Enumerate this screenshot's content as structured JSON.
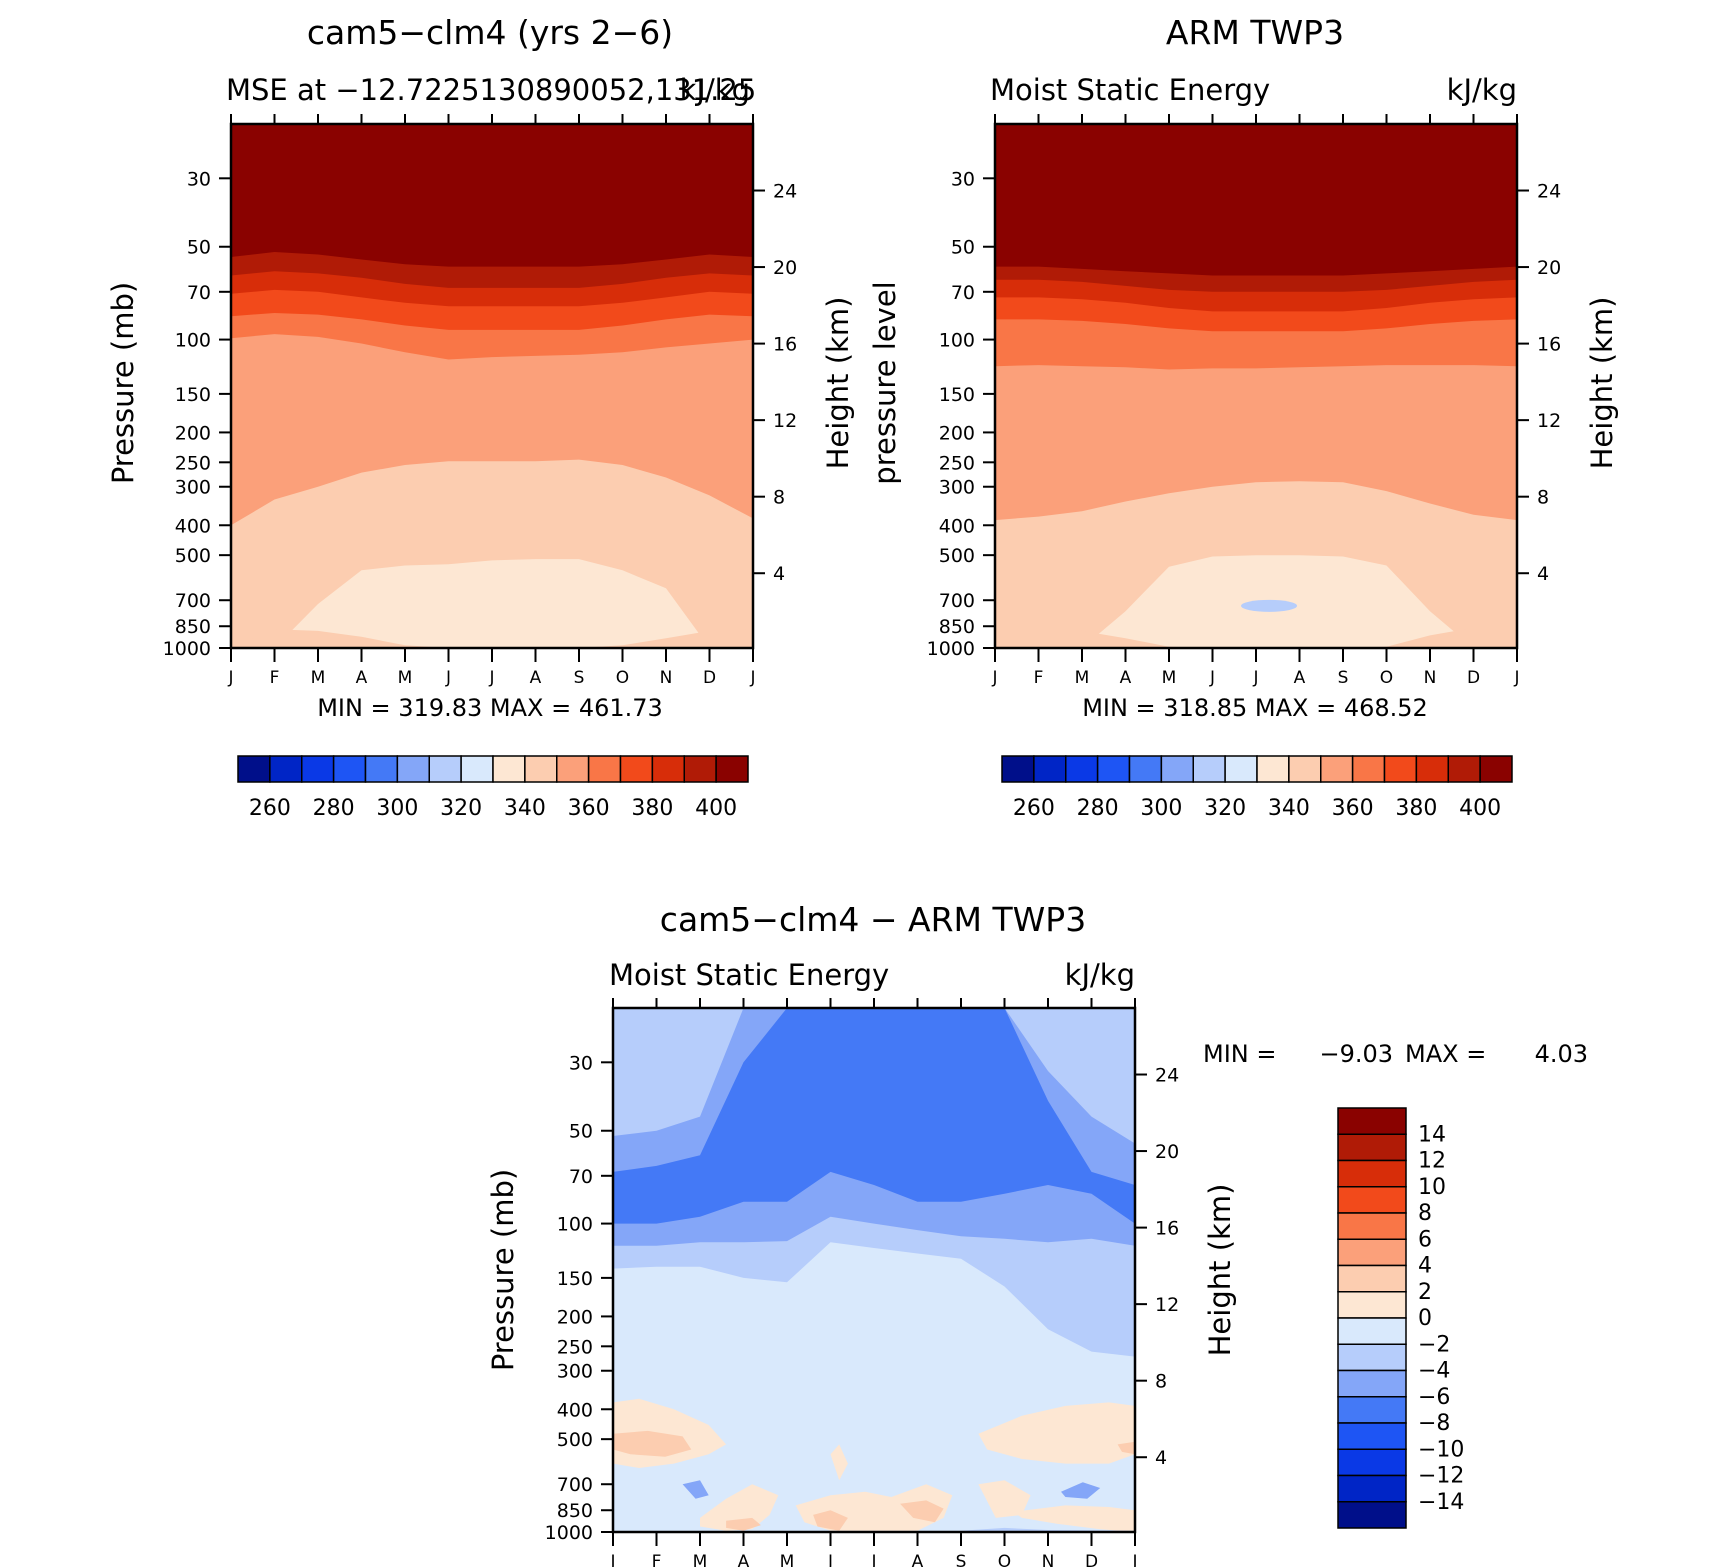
{
  "chart_data": [
    {
      "type": "heatmap",
      "title": "cam5−clm4 (yrs 2−6)",
      "subtitle_left": "MSE at −12.7225130890052,131.25",
      "subtitle_right": "kJ/kg",
      "ylabel_left": "Pressure (mb)",
      "ylabel_right": "Height (km)",
      "x_categories": [
        "J",
        "F",
        "M",
        "A",
        "M",
        "J",
        "J",
        "A",
        "S",
        "O",
        "N",
        "D",
        "J"
      ],
      "y_pressure_ticks": [
        30,
        50,
        70,
        100,
        150,
        200,
        250,
        300,
        400,
        500,
        700,
        850,
        1000
      ],
      "y_height_ticks": [
        24,
        20,
        16,
        12,
        8,
        4
      ],
      "ylim_pressure": [
        1000,
        20
      ],
      "levels": [
        250,
        260,
        270,
        280,
        290,
        300,
        310,
        320,
        330,
        340,
        350,
        360,
        370,
        380,
        390,
        400
      ],
      "stats": "MIN = 319.83 MAX = 461.73",
      "colorbar_labels": [
        "260",
        "280",
        "300",
        "320",
        "340",
        "360",
        "380",
        "400"
      ],
      "bands_pressure": [
        {
          "level_idx": 15,
          "top": [
            20,
            20,
            20,
            20,
            20,
            20,
            20,
            20,
            20,
            20,
            20,
            20,
            20
          ]
        },
        {
          "level_idx": 14,
          "top": [
            54,
            52,
            53,
            55,
            57,
            58,
            58,
            58,
            58,
            57,
            55,
            53,
            54
          ]
        },
        {
          "level_idx": 13,
          "top": [
            62,
            60,
            61,
            63,
            66,
            68,
            68,
            68,
            68,
            66,
            63,
            61,
            62
          ]
        },
        {
          "level_idx": 12,
          "top": [
            71,
            69,
            70,
            73,
            76,
            78,
            78,
            78,
            78,
            76,
            73,
            70,
            71
          ]
        },
        {
          "level_idx": 11,
          "top": [
            84,
            82,
            83,
            86,
            90,
            93,
            93,
            93,
            93,
            90,
            86,
            83,
            84
          ]
        },
        {
          "level_idx": 10,
          "top": [
            99,
            96,
            98,
            103,
            110,
            116,
            114,
            113,
            112,
            110,
            106,
            103,
            100
          ]
        },
        {
          "level_idx": 9,
          "top": [
            400,
            330,
            300,
            270,
            255,
            248,
            248,
            248,
            245,
            255,
            280,
            320,
            380
          ]
        },
        {
          "level_idx": 8,
          "top": [
            1000,
            1000,
            720,
            560,
            540,
            535,
            520,
            515,
            515,
            560,
            640,
            1000,
            1000
          ]
        },
        {
          "level_idx": 9,
          "top": [
            1000,
            870,
            880,
            920,
            980,
            1000,
            1000,
            1000,
            1000,
            980,
            930,
            880,
            870
          ]
        }
      ],
      "min_value": 319.83,
      "max_value": 461.73
    },
    {
      "type": "heatmap",
      "title": "ARM TWP3",
      "subtitle_left": "Moist Static Energy",
      "subtitle_right": "kJ/kg",
      "ylabel_left": "pressure level",
      "ylabel_right": "Height (km)",
      "x_categories": [
        "J",
        "F",
        "M",
        "A",
        "M",
        "J",
        "J",
        "A",
        "S",
        "O",
        "N",
        "D",
        "J"
      ],
      "y_pressure_ticks": [
        30,
        50,
        70,
        100,
        150,
        200,
        250,
        300,
        400,
        500,
        700,
        850,
        1000
      ],
      "y_height_ticks": [
        24,
        20,
        16,
        12,
        8,
        4
      ],
      "ylim_pressure": [
        1000,
        20
      ],
      "levels": [
        250,
        260,
        270,
        280,
        290,
        300,
        310,
        320,
        330,
        340,
        350,
        360,
        370,
        380,
        390,
        400
      ],
      "stats": "MIN = 318.85 MAX = 468.52",
      "colorbar_labels": [
        "260",
        "280",
        "300",
        "320",
        "340",
        "360",
        "380",
        "400"
      ],
      "bands_pressure": [
        {
          "level_idx": 15,
          "top": [
            20,
            20,
            20,
            20,
            20,
            20,
            20,
            20,
            20,
            20,
            20,
            20,
            20
          ]
        },
        {
          "level_idx": 14,
          "top": [
            58,
            58,
            59,
            60,
            61,
            62,
            62,
            62,
            62,
            61,
            60,
            59,
            58
          ]
        },
        {
          "level_idx": 13,
          "top": [
            64,
            64,
            65,
            67,
            69,
            70,
            70,
            70,
            70,
            69,
            67,
            65,
            64
          ]
        },
        {
          "level_idx": 12,
          "top": [
            73,
            73,
            74,
            76,
            79,
            81,
            81,
            81,
            81,
            79,
            76,
            74,
            73
          ]
        },
        {
          "level_idx": 11,
          "top": [
            86,
            86,
            87,
            89,
            92,
            94,
            94,
            94,
            94,
            92,
            89,
            87,
            86
          ]
        },
        {
          "level_idx": 10,
          "top": [
            122,
            121,
            122,
            123,
            125,
            124,
            124,
            123,
            122,
            121,
            121,
            121,
            122
          ]
        },
        {
          "level_idx": 9,
          "top": [
            385,
            375,
            360,
            335,
            315,
            300,
            290,
            288,
            290,
            310,
            340,
            370,
            385
          ]
        },
        {
          "level_idx": 8,
          "top": [
            1000,
            1000,
            1000,
            760,
            545,
            505,
            500,
            500,
            505,
            540,
            760,
            1000,
            1000
          ]
        },
        {
          "level_idx": 9,
          "top": [
            860,
            850,
            880,
            930,
            990,
            1000,
            1000,
            1000,
            1000,
            990,
            910,
            860,
            860
          ]
        }
      ],
      "inner_minimum": {
        "level_idx": 6,
        "x": 6.3,
        "p": 730
      },
      "min_value": 318.85,
      "max_value": 468.52
    },
    {
      "type": "heatmap",
      "title": "cam5−clm4 − ARM TWP3",
      "subtitle_left": "Moist Static Energy",
      "subtitle_right": "kJ/kg",
      "ylabel_left": "Pressure (mb)",
      "ylabel_right": "Height (km)",
      "x_categories": [
        "J",
        "F",
        "M",
        "A",
        "M",
        "J",
        "J",
        "A",
        "S",
        "O",
        "N",
        "D",
        "J"
      ],
      "y_pressure_ticks": [
        30,
        50,
        70,
        100,
        150,
        200,
        250,
        300,
        400,
        500,
        700,
        850,
        1000
      ],
      "y_height_ticks": [
        24,
        20,
        16,
        12,
        8,
        4
      ],
      "ylim_pressure": [
        1000,
        20
      ],
      "levels": [
        -16,
        -14,
        -12,
        -10,
        -8,
        -6,
        -4,
        -2,
        0,
        2,
        4,
        6,
        8,
        10,
        12,
        14,
        16
      ],
      "stats_min_label": "MIN =",
      "stats_min": "−9.03",
      "stats_max_label": "MAX =",
      "stats_max": "4.03",
      "colorbar_labels": [
        "14",
        "12",
        "10",
        "8",
        "6",
        "4",
        "2",
        "0",
        "−2",
        "−4",
        "−6",
        "−8",
        "−10",
        "−12",
        "−14"
      ],
      "bands_pressure": [
        {
          "level_idx": 7,
          "top": [
            20,
            20,
            20,
            20,
            20,
            20,
            20,
            20,
            20,
            20,
            20,
            20,
            20
          ]
        },
        {
          "level_idx": 6,
          "top": [
            20,
            20,
            20,
            20,
            20,
            20,
            20,
            20,
            20,
            20,
            20,
            20,
            20
          ]
        },
        {
          "level_idx": 5,
          "top": [
            52,
            50,
            45,
            20,
            20,
            20,
            20,
            20,
            20,
            20,
            32,
            45,
            55
          ]
        },
        {
          "level_idx": 4,
          "top": [
            68,
            65,
            60,
            30,
            20,
            20,
            20,
            20,
            20,
            20,
            40,
            68,
            75
          ]
        },
        {
          "level_idx": 5,
          "top": [
            100,
            100,
            95,
            85,
            85,
            68,
            75,
            85,
            85,
            80,
            75,
            80,
            100
          ]
        },
        {
          "level_idx": 6,
          "top": [
            118,
            118,
            115,
            115,
            114,
            95,
            100,
            105,
            110,
            112,
            115,
            112,
            118
          ]
        },
        {
          "level_idx": 7,
          "top": [
            140,
            138,
            138,
            150,
            155,
            115,
            120,
            125,
            130,
            160,
            220,
            260,
            270
          ]
        },
        {
          "level_idx": 8,
          "top": [
            1000,
            1000,
            1000,
            1000,
            1000,
            1000,
            1000,
            1000,
            1000,
            1000,
            1000,
            1000,
            1000
          ]
        }
      ],
      "warm_patches": [
        {
          "level_idx": 8,
          "xs": [
            0,
            0.6,
            1.4,
            2.2,
            2.6,
            2.2,
            1.4,
            0.6,
            0
          ],
          "ps": [
            380,
            370,
            400,
            450,
            520,
            560,
            600,
            620,
            600
          ]
        },
        {
          "level_idx": 9,
          "xs": [
            0,
            0.8,
            1.6,
            1.8,
            1.2,
            0.4,
            0
          ],
          "ps": [
            480,
            470,
            490,
            540,
            570,
            560,
            540
          ]
        },
        {
          "level_idx": 8,
          "xs": [
            8.4,
            9.4,
            10.4,
            11.4,
            12,
            12,
            11.4,
            10.4,
            9.4,
            8.6
          ],
          "ps": [
            480,
            420,
            390,
            380,
            390,
            560,
            600,
            600,
            580,
            540
          ]
        },
        {
          "level_idx": 9,
          "xs": [
            11.6,
            12,
            12,
            11.7
          ],
          "ps": [
            520,
            510,
            560,
            550
          ]
        },
        {
          "level_idx": 8,
          "xs": [
            2,
            2.6,
            3.2,
            3.8,
            3.6,
            3.2,
            2.6,
            2.0
          ],
          "ps": [
            900,
            780,
            700,
            760,
            880,
            980,
            990,
            960
          ]
        },
        {
          "level_idx": 9,
          "xs": [
            2.6,
            3.2,
            3.4,
            3.0,
            2.6
          ],
          "ps": [
            920,
            900,
            950,
            990,
            970
          ]
        },
        {
          "level_idx": 8,
          "xs": [
            4.2,
            5.0,
            5.8,
            6.4,
            7.2,
            7.8,
            7.6,
            7.0,
            6.0,
            5.0,
            4.4
          ],
          "ps": [
            820,
            760,
            740,
            770,
            700,
            760,
            900,
            990,
            990,
            990,
            930
          ]
        },
        {
          "level_idx": 9,
          "xs": [
            4.6,
            5.0,
            5.4,
            5.2,
            4.7
          ],
          "ps": [
            880,
            850,
            900,
            990,
            960
          ]
        },
        {
          "level_idx": 9,
          "xs": [
            6.6,
            7.2,
            7.6,
            7.4,
            6.9
          ],
          "ps": [
            810,
            790,
            840,
            930,
            900
          ]
        },
        {
          "level_idx": 8,
          "xs": [
            5.0,
            5.2,
            5.4,
            5.2
          ],
          "ps": [
            560,
            520,
            600,
            680
          ]
        },
        {
          "level_idx": 8,
          "xs": [
            8.4,
            9.0,
            9.6,
            9.4,
            8.8
          ],
          "ps": [
            700,
            680,
            760,
            880,
            900
          ]
        },
        {
          "level_idx": 8,
          "xs": [
            9.2,
            10.4,
            11.4,
            12,
            12,
            11.2,
            10.2,
            9.4
          ],
          "ps": [
            860,
            820,
            830,
            850,
            1000,
            980,
            940,
            900
          ]
        }
      ],
      "cool_patches": [
        {
          "level_idx": 5,
          "xs": [
            1.6,
            2.0,
            2.2,
            1.9
          ],
          "ps": [
            700,
            680,
            760,
            780
          ]
        },
        {
          "level_idx": 5,
          "xs": [
            10.3,
            10.8,
            11.2,
            10.9,
            10.4
          ],
          "ps": [
            740,
            690,
            720,
            780,
            770
          ]
        },
        {
          "level_idx": 6,
          "xs": [
            8.0,
            9.0,
            10.0,
            12,
            12,
            10.0,
            8.6
          ],
          "ps": [
            990,
            970,
            985,
            990,
            1000,
            1000,
            1000
          ]
        }
      ],
      "min_value": -9.03,
      "max_value": 4.03
    }
  ],
  "colors": {
    "mse_palette": [
      "#000f8a",
      "#0025c6",
      "#0a39e6",
      "#1e55f4",
      "#4479f6",
      "#84a6f8",
      "#b6cdfb",
      "#d9e9fc",
      "#fde7d3",
      "#fccdb0",
      "#fba07a",
      "#f97647",
      "#f24a1b",
      "#d72d09",
      "#b01b06",
      "#8a0200"
    ],
    "diff_palette": [
      "#000f8a",
      "#0025c6",
      "#0a39e6",
      "#1e55f4",
      "#4479f6",
      "#84a6f8",
      "#b6cdfb",
      "#d9e9fc",
      "#fde7d3",
      "#fccdb0",
      "#fba07a",
      "#f97647",
      "#f24a1b",
      "#d72d09",
      "#b01b06",
      "#8a0200"
    ]
  }
}
